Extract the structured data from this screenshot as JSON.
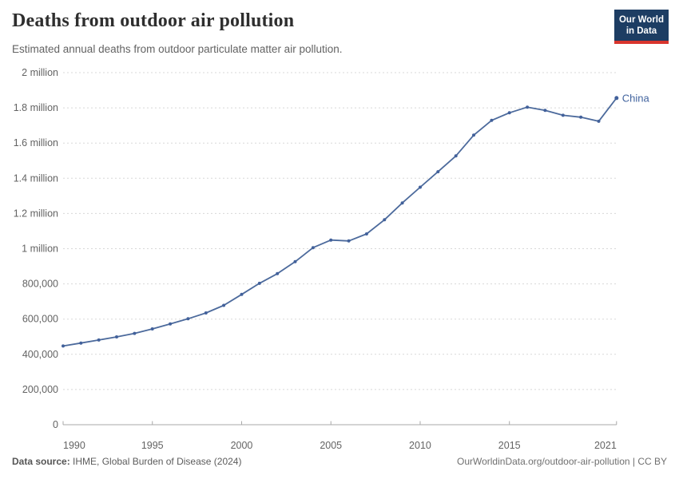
{
  "header": {
    "title": "Deaths from outdoor air pollution",
    "subtitle": "Estimated annual deaths from outdoor particulate matter air pollution."
  },
  "logo": {
    "line1": "Our World",
    "line2": "in Data",
    "bg_color": "#1d3d63",
    "stripe_color": "#d8352e"
  },
  "footer": {
    "source_label": "Data source:",
    "source_text": " IHME, Global Burden of Disease (2024)",
    "right_text": "OurWorldinData.org/outdoor-air-pollution | CC BY"
  },
  "chart_data": {
    "type": "line",
    "title": "Deaths from outdoor air pollution",
    "xlabel": "",
    "ylabel": "",
    "grid": "horizontal-dashed",
    "legend_position": "end-of-line",
    "xlim": [
      1990,
      2021
    ],
    "ylim": [
      0,
      2000000
    ],
    "x_ticks": [
      1990,
      1995,
      2000,
      2005,
      2010,
      2015,
      2021
    ],
    "y_ticks": [
      {
        "value": 0,
        "label": "0"
      },
      {
        "value": 200000,
        "label": "200,000"
      },
      {
        "value": 400000,
        "label": "400,000"
      },
      {
        "value": 600000,
        "label": "600,000"
      },
      {
        "value": 800000,
        "label": "800,000"
      },
      {
        "value": 1000000,
        "label": "1 million"
      },
      {
        "value": 1200000,
        "label": "1.2 million"
      },
      {
        "value": 1400000,
        "label": "1.4 million"
      },
      {
        "value": 1600000,
        "label": "1.6 million"
      },
      {
        "value": 1800000,
        "label": "1.8 million"
      },
      {
        "value": 2000000,
        "label": "2 million"
      }
    ],
    "series": [
      {
        "name": "China",
        "line_color": "#4c6a9c",
        "marker_color": "#42619b",
        "label_color": "#41639e",
        "x": [
          1990,
          1991,
          1992,
          1993,
          1994,
          1995,
          1996,
          1997,
          1998,
          1999,
          2000,
          2001,
          2002,
          2003,
          2004,
          2005,
          2006,
          2007,
          2008,
          2009,
          2010,
          2011,
          2012,
          2013,
          2014,
          2015,
          2016,
          2017,
          2018,
          2019,
          2020,
          2021
        ],
        "values": [
          447000,
          464000,
          481000,
          499000,
          519000,
          544000,
          573000,
          602000,
          635000,
          678000,
          740000,
          803000,
          858000,
          926000,
          1006000,
          1049000,
          1044000,
          1084000,
          1164000,
          1260000,
          1349000,
          1437000,
          1527000,
          1645000,
          1729000,
          1772000,
          1804000,
          1786000,
          1758000,
          1747000,
          1724000,
          1856000
        ]
      }
    ],
    "colors": {
      "gridline": "#d8d8d8",
      "axis_line": "#a9a9a9",
      "tick_label": "#636363"
    }
  }
}
